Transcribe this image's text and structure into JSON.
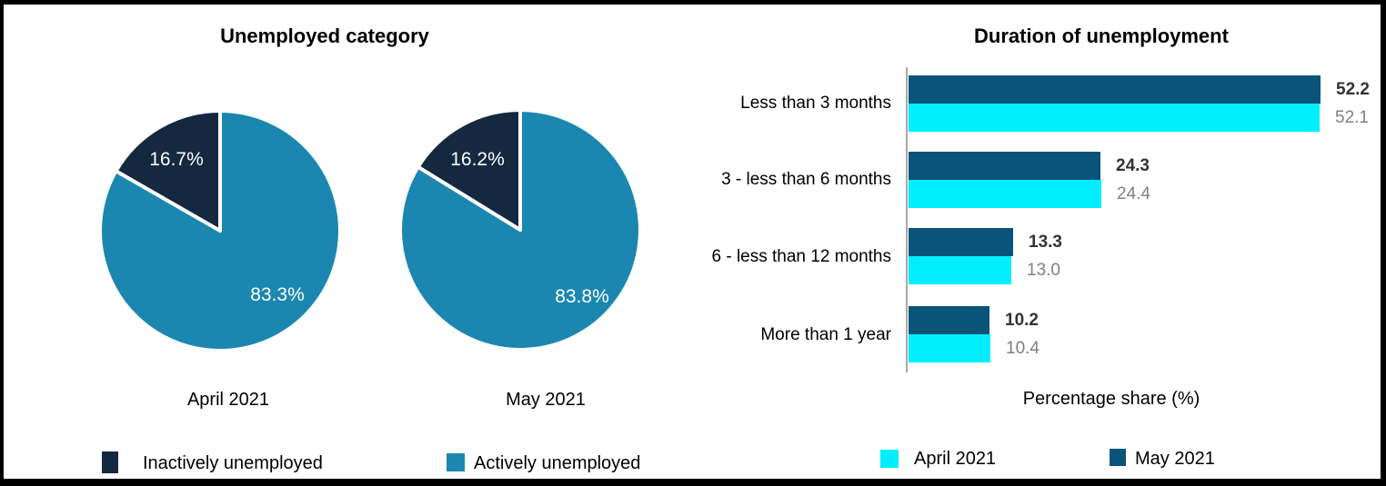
{
  "colors": {
    "navy": "#142840",
    "teal": "#1b87b0",
    "bar_may": "#0a5379",
    "bar_april": "#00eeff",
    "axis_gray": "#a6a6a6",
    "value_gray": "#7f7f7f"
  },
  "left_chart": {
    "title": "Unemployed category",
    "pies": [
      {
        "caption": "April 2021",
        "inactive_pct": "16.7%",
        "active_pct": "83.3%"
      },
      {
        "caption": "May 2021",
        "inactive_pct": "16.2%",
        "active_pct": "83.8%"
      }
    ],
    "legend": [
      {
        "label": "Inactively unemployed",
        "color": "#142840"
      },
      {
        "label": "Actively unemployed",
        "color": "#1b87b0"
      }
    ]
  },
  "right_chart": {
    "title": "Duration of unemployment",
    "xlabel": "Percentage share (%)",
    "rows": [
      {
        "category": "Less than 3 months",
        "may": "52.2",
        "april": "52.1"
      },
      {
        "category": "3 - less than 6 months",
        "may": "24.3",
        "april": "24.4"
      },
      {
        "category": "6 - less than 12 months",
        "may": "13.3",
        "april": "13.0"
      },
      {
        "category": "More than 1 year",
        "may": "10.2",
        "april": "10.4"
      }
    ],
    "legend": [
      {
        "label": "April 2021",
        "color": "#00eeff"
      },
      {
        "label": "May 2021",
        "color": "#0a5379"
      }
    ]
  },
  "chart_data": [
    {
      "type": "pie",
      "title": "Unemployed category - April 2021",
      "labels": [
        "Inactively unemployed",
        "Actively unemployed"
      ],
      "values": [
        16.7,
        83.3
      ]
    },
    {
      "type": "pie",
      "title": "Unemployed category - May 2021",
      "labels": [
        "Inactively unemployed",
        "Actively unemployed"
      ],
      "values": [
        16.2,
        83.8
      ]
    },
    {
      "type": "bar",
      "orientation": "horizontal",
      "title": "Duration of unemployment",
      "categories": [
        "Less than 3 months",
        "3 - less than 6 months",
        "6 - less than 12 months",
        "More than 1 year"
      ],
      "series": [
        {
          "name": "May 2021",
          "values": [
            52.2,
            24.3,
            13.3,
            10.2
          ]
        },
        {
          "name": "April 2021",
          "values": [
            52.1,
            24.4,
            13.0,
            10.4
          ]
        }
      ],
      "xlabel": "Percentage share (%)",
      "xlim": [
        0,
        60
      ],
      "grid": false,
      "legend_position": "bottom"
    }
  ]
}
